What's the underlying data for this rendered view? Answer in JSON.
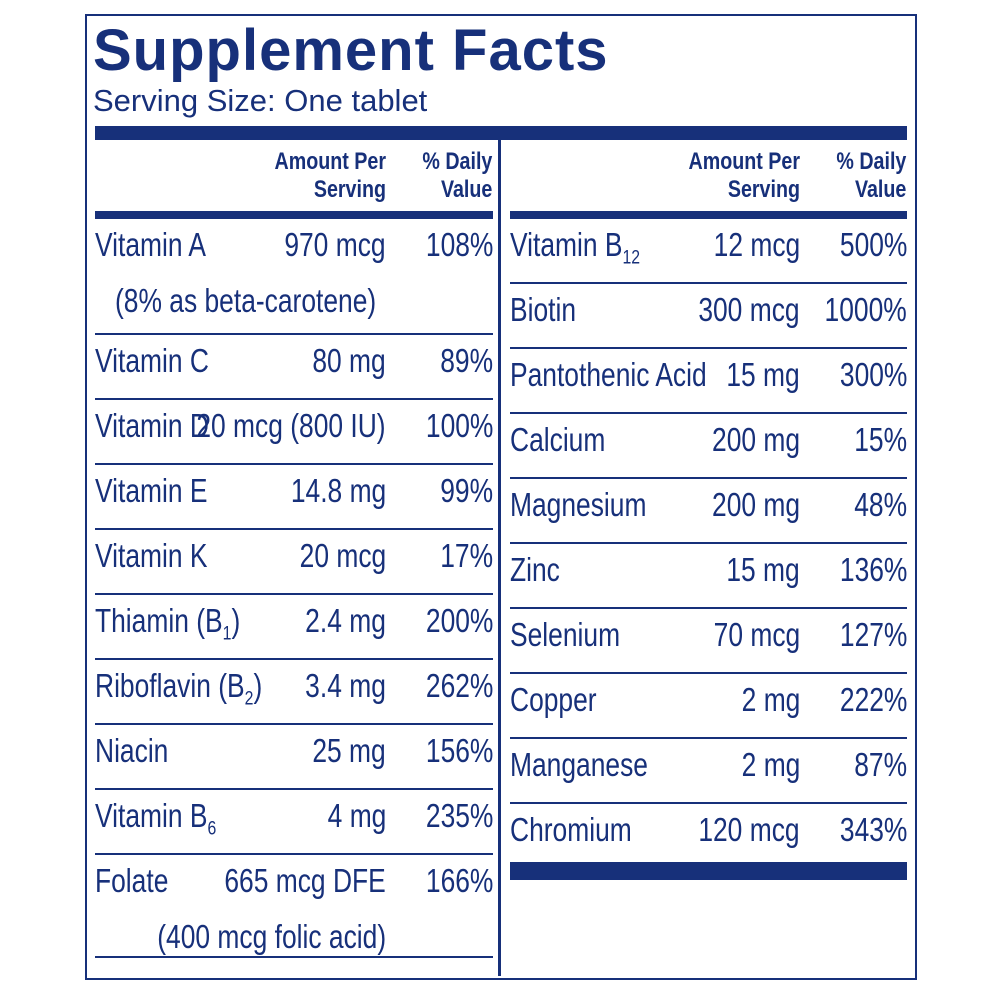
{
  "title": "Supplement Facts",
  "serving_size": "Serving Size: One tablet",
  "headers": {
    "amount_line1": "Amount Per",
    "amount_line2": "Serving",
    "dv_line1": "% Daily",
    "dv_line2": "Value"
  },
  "left_rows": [
    {
      "name": "Vitamin A",
      "amount": "970 mcg",
      "dv": "108%",
      "note": "(8% as beta-carotene)"
    },
    {
      "name": "Vitamin C",
      "amount": "80 mg",
      "dv": "89%"
    },
    {
      "name": "Vitamin D",
      "amount": "20 mcg (800 IU)",
      "dv": "100%"
    },
    {
      "name": "Vitamin E",
      "amount": "14.8 mg",
      "dv": "99%"
    },
    {
      "name": "Vitamin K",
      "amount": "20 mcg",
      "dv": "17%"
    },
    {
      "name": "Thiamin (B",
      "name_sub": "1",
      "name_after": ")",
      "amount": "2.4 mg",
      "dv": "200%"
    },
    {
      "name": "Riboflavin (B",
      "name_sub": "2",
      "name_after": ")",
      "amount": "3.4 mg",
      "dv": "262%"
    },
    {
      "name": "Niacin",
      "amount": "25 mg",
      "dv": "156%"
    },
    {
      "name": "Vitamin B",
      "name_sub": "6",
      "amount": "4 mg",
      "dv": "235%"
    },
    {
      "name": "Folate",
      "amount": "665 mcg DFE",
      "dv": "166%",
      "note": "(400 mcg folic acid)"
    }
  ],
  "right_rows": [
    {
      "name": "Vitamin B",
      "name_sub": "12",
      "amount": "12 mcg",
      "dv": "500%"
    },
    {
      "name": "Biotin",
      "amount": "300 mcg",
      "dv": "1000%"
    },
    {
      "name": "Pantothenic Acid",
      "amount": "15 mg",
      "dv": "300%"
    },
    {
      "name": "Calcium",
      "amount": "200 mg",
      "dv": "15%"
    },
    {
      "name": "Magnesium",
      "amount": "200 mg",
      "dv": "48%"
    },
    {
      "name": "Zinc",
      "amount": "15 mg",
      "dv": "136%"
    },
    {
      "name": "Selenium",
      "amount": "70 mcg",
      "dv": "127%"
    },
    {
      "name": "Copper",
      "amount": "2 mg",
      "dv": "222%"
    },
    {
      "name": "Manganese",
      "amount": "2 mg",
      "dv": "87%"
    },
    {
      "name": "Chromium",
      "amount": "120 mcg",
      "dv": "343%"
    }
  ],
  "colors": {
    "ink": "#17307a",
    "background": "#ffffff"
  }
}
